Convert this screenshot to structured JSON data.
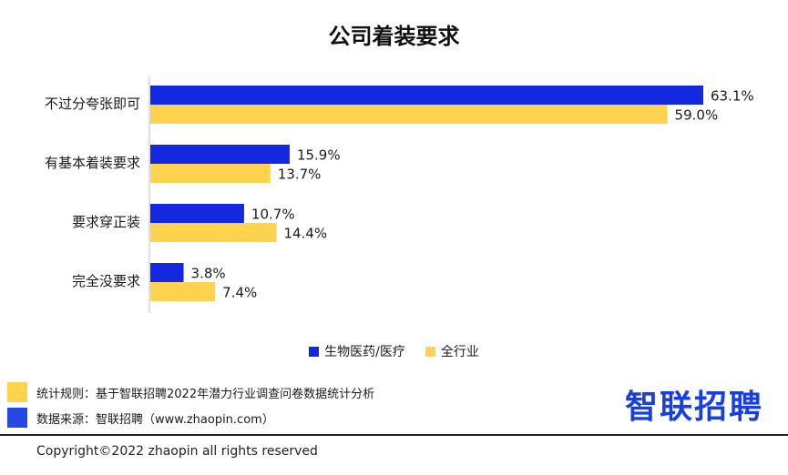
{
  "title": "公司着装要求",
  "colors": {
    "series1": "#1428e0",
    "series2": "#ffd34e",
    "axis": "#bfbfbf",
    "logo": "#1a3fe0",
    "note1": "#ffd34e",
    "note2": "#2548e6"
  },
  "chart_data": {
    "type": "bar",
    "orientation": "horizontal",
    "title": "公司着装要求",
    "categories": [
      "不过分夸张即可",
      "有基本着装要求",
      "要求穿正装",
      "完全没要求"
    ],
    "series": [
      {
        "name": "生物医药/医疗",
        "values": [
          63.1,
          15.9,
          10.7,
          3.8
        ],
        "labels": [
          "63.1%",
          "15.9%",
          "10.7%",
          "3.8%"
        ]
      },
      {
        "name": "全行业",
        "values": [
          59.0,
          13.7,
          14.4,
          7.4
        ],
        "labels": [
          "59.0%",
          "13.7%",
          "14.4%",
          "7.4%"
        ]
      }
    ],
    "xlim": [
      0,
      70
    ],
    "grid": false,
    "legend": "bottom"
  },
  "legend": {
    "items": [
      "生物医药/医疗",
      "全行业"
    ]
  },
  "notes": {
    "rule": "统计规则：基于智联招聘2022年潜力行业调查问卷数据统计分析",
    "source": "数据来源：智联招聘（www.zhaopin.com）"
  },
  "logo": {
    "text": "智联招聘"
  },
  "footer": {
    "copyright": "Copyright©2022 zhaopin all rights reserved"
  }
}
